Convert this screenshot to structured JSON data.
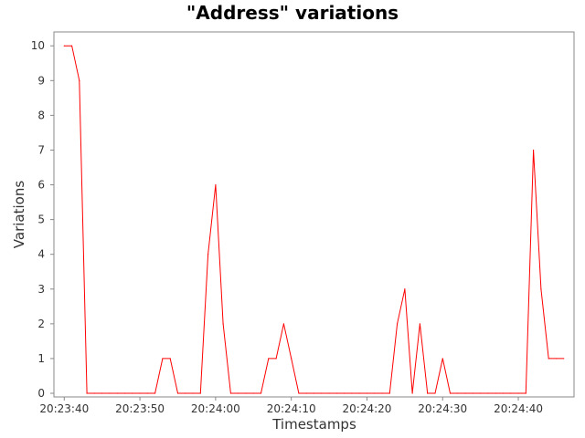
{
  "chart_data": {
    "type": "line",
    "title": "\"Address\" variations",
    "xlabel": "Timestamps",
    "ylabel": "Variations",
    "x_ticks": [
      "20:23:40",
      "20:23:50",
      "20:24:00",
      "20:24:10",
      "20:24:20",
      "20:24:30",
      "20:24:40"
    ],
    "y_ticks": [
      "0",
      "1",
      "2",
      "3",
      "4",
      "5",
      "6",
      "7",
      "8",
      "9",
      "10"
    ],
    "xlim": [
      "20:23:39",
      "20:24:47"
    ],
    "ylim": [
      0,
      10.4
    ],
    "grid": false,
    "legend": "none",
    "series": [
      {
        "color": "#ff0000",
        "x": [
          "20:23:40",
          "20:23:41",
          "20:23:42",
          "20:23:43",
          "20:23:44",
          "20:23:45",
          "20:23:46",
          "20:23:47",
          "20:23:48",
          "20:23:49",
          "20:23:50",
          "20:23:51",
          "20:23:52",
          "20:23:53",
          "20:23:54",
          "20:23:55",
          "20:23:56",
          "20:23:57",
          "20:23:58",
          "20:23:59",
          "20:24:00",
          "20:24:01",
          "20:24:02",
          "20:24:03",
          "20:24:04",
          "20:24:05",
          "20:24:06",
          "20:24:07",
          "20:24:08",
          "20:24:09",
          "20:24:10",
          "20:24:11",
          "20:24:12",
          "20:24:13",
          "20:24:14",
          "20:24:15",
          "20:24:16",
          "20:24:17",
          "20:24:18",
          "20:24:19",
          "20:24:20",
          "20:24:21",
          "20:24:22",
          "20:24:23",
          "20:24:24",
          "20:24:25",
          "20:24:26",
          "20:24:27",
          "20:24:28",
          "20:24:29",
          "20:24:30",
          "20:24:31",
          "20:24:32",
          "20:24:33",
          "20:24:34",
          "20:24:35",
          "20:24:36",
          "20:24:37",
          "20:24:38",
          "20:24:39",
          "20:24:40",
          "20:24:41",
          "20:24:42",
          "20:24:43",
          "20:24:44",
          "20:24:45",
          "20:24:46"
        ],
        "values": [
          10,
          10,
          9,
          0,
          0,
          0,
          0,
          0,
          0,
          0,
          0,
          0,
          0,
          1,
          1,
          0,
          0,
          0,
          0,
          4,
          6,
          2,
          0,
          0,
          0,
          0,
          0,
          1,
          1,
          2,
          1,
          0,
          0,
          0,
          0,
          0,
          0,
          0,
          0,
          0,
          0,
          0,
          0,
          0,
          2,
          3,
          0,
          2,
          0,
          0,
          1,
          0,
          0,
          0,
          0,
          0,
          0,
          0,
          0,
          0,
          0,
          0,
          7,
          3,
          1,
          1,
          1
        ]
      }
    ]
  }
}
